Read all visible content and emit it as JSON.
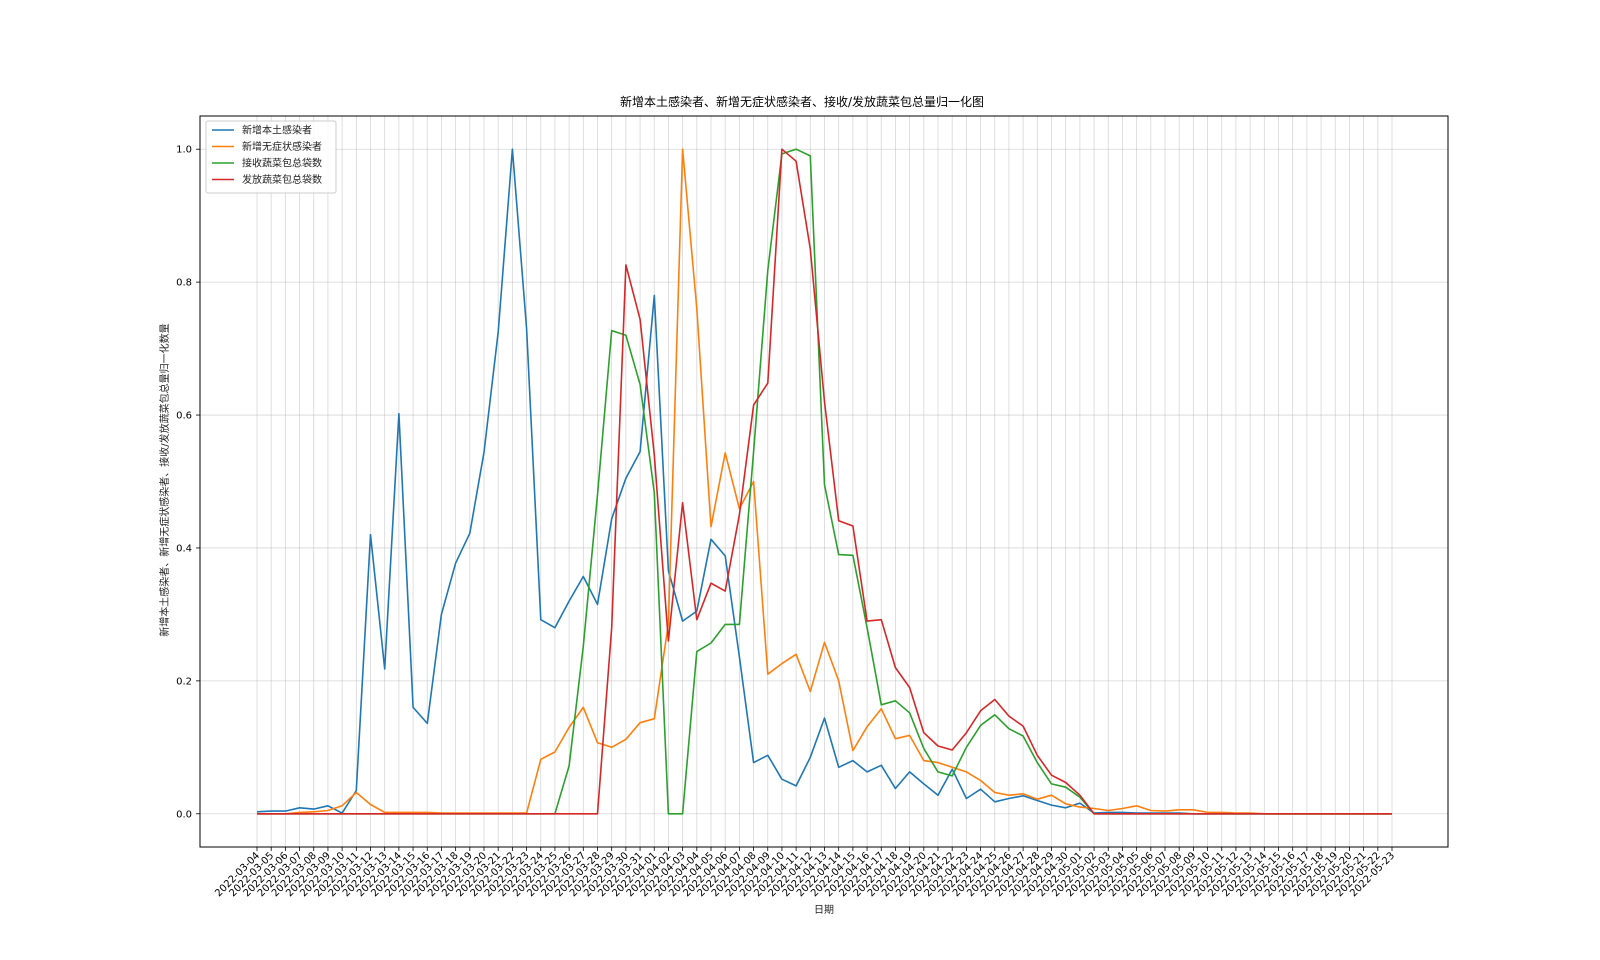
{
  "chart_data": {
    "type": "line",
    "title": "新增本土感染者、新增无症状感染者、接收/发放蔬菜包总量归一化图",
    "xlabel": "日期",
    "ylabel": "新增本土感染者、新增无症状感染者、接收/发放蔬菜包总量归一化数量",
    "ylim": [
      -0.05,
      1.05
    ],
    "yticks": [
      "0.0",
      "0.2",
      "0.4",
      "0.6",
      "0.8",
      "1.0"
    ],
    "grid": true,
    "legend_position": "top-left",
    "x": [
      "2022-03-04",
      "2022-03-05",
      "2022-03-06",
      "2022-03-07",
      "2022-03-08",
      "2022-03-09",
      "2022-03-10",
      "2022-03-11",
      "2022-03-12",
      "2022-03-13",
      "2022-03-14",
      "2022-03-15",
      "2022-03-16",
      "2022-03-17",
      "2022-03-18",
      "2022-03-19",
      "2022-03-20",
      "2022-03-21",
      "2022-03-22",
      "2022-03-23",
      "2022-03-24",
      "2022-03-25",
      "2022-03-26",
      "2022-03-27",
      "2022-03-28",
      "2022-03-29",
      "2022-03-30",
      "2022-03-31",
      "2022-04-01",
      "2022-04-02",
      "2022-04-03",
      "2022-04-04",
      "2022-04-05",
      "2022-04-06",
      "2022-04-07",
      "2022-04-08",
      "2022-04-09",
      "2022-04-10",
      "2022-04-11",
      "2022-04-12",
      "2022-04-13",
      "2022-04-14",
      "2022-04-15",
      "2022-04-16",
      "2022-04-17",
      "2022-04-18",
      "2022-04-19",
      "2022-04-20",
      "2022-04-21",
      "2022-04-22",
      "2022-04-23",
      "2022-04-24",
      "2022-04-25",
      "2022-04-26",
      "2022-04-27",
      "2022-04-28",
      "2022-04-29",
      "2022-04-30",
      "2022-05-01",
      "2022-05-02",
      "2022-05-03",
      "2022-05-04",
      "2022-05-05",
      "2022-05-06",
      "2022-05-07",
      "2022-05-08",
      "2022-05-09",
      "2022-05-10",
      "2022-05-11",
      "2022-05-12",
      "2022-05-13",
      "2022-05-14",
      "2022-05-15",
      "2022-05-16",
      "2022-05-17",
      "2022-05-18",
      "2022-05-19",
      "2022-05-20",
      "2022-05-21",
      "2022-05-22",
      "2022-05-23"
    ],
    "series": [
      {
        "name": "新增本土感染者",
        "color": "#1f77b4",
        "values": [
          0.003,
          0.004,
          0.004,
          0.009,
          0.007,
          0.012,
          0.001,
          0.035,
          0.42,
          0.218,
          0.602,
          0.16,
          0.136,
          0.3,
          0.377,
          0.422,
          0.544,
          0.725,
          1.0,
          0.73,
          0.292,
          0.28,
          0.32,
          0.357,
          0.315,
          0.444,
          0.505,
          0.545,
          0.78,
          0.366,
          0.29,
          0.305,
          0.413,
          0.388,
          0.236,
          0.077,
          0.088,
          0.052,
          0.042,
          0.085,
          0.144,
          0.07,
          0.08,
          0.063,
          0.073,
          0.038,
          0.063,
          0.045,
          0.028,
          0.067,
          0.023,
          0.037,
          0.018,
          0.023,
          0.027,
          0.02,
          0.013,
          0.009,
          0.016,
          0.001,
          0.002,
          0.002,
          0.001,
          0.001,
          0.001,
          0.001,
          0.0,
          0.0,
          0.0,
          0.0,
          0.0,
          0.0,
          0.0,
          0.0,
          0.0,
          0.0,
          0.0,
          0.0,
          0.0,
          0.0,
          0.0
        ]
      },
      {
        "name": "新增无症状感染者",
        "color": "#ff7f0e",
        "values": [
          0.0,
          0.0,
          0.0,
          0.002,
          0.003,
          0.005,
          0.012,
          0.032,
          0.014,
          0.002,
          0.002,
          0.002,
          0.002,
          0.001,
          0.001,
          0.001,
          0.001,
          0.001,
          0.001,
          0.001,
          0.082,
          0.093,
          0.13,
          0.16,
          0.107,
          0.1,
          0.112,
          0.137,
          0.143,
          0.286,
          1.0,
          0.76,
          0.432,
          0.543,
          0.459,
          0.5,
          0.21,
          0.226,
          0.24,
          0.184,
          0.258,
          0.2,
          0.095,
          0.131,
          0.158,
          0.113,
          0.118,
          0.08,
          0.077,
          0.07,
          0.063,
          0.05,
          0.032,
          0.028,
          0.03,
          0.022,
          0.028,
          0.015,
          0.01,
          0.008,
          0.005,
          0.008,
          0.012,
          0.005,
          0.004,
          0.006,
          0.006,
          0.002,
          0.002,
          0.001,
          0.001,
          0.0,
          0.0,
          0.0,
          0.0,
          0.0,
          0.0,
          0.0,
          0.0,
          0.0,
          0.0
        ]
      },
      {
        "name": "接收蔬菜包总袋数",
        "color": "#2ca02c",
        "values": [
          0.0,
          0.0,
          0.0,
          0.0,
          0.0,
          0.0,
          0.0,
          0.0,
          0.0,
          0.0,
          0.0,
          0.0,
          0.0,
          0.0,
          0.0,
          0.0,
          0.0,
          0.0,
          0.0,
          0.0,
          0.0,
          0.0,
          0.072,
          0.252,
          0.48,
          0.727,
          0.72,
          0.646,
          0.483,
          0.0,
          0.0,
          0.244,
          0.257,
          0.285,
          0.285,
          0.545,
          0.818,
          0.993,
          1.0,
          0.99,
          0.495,
          0.39,
          0.389,
          0.28,
          0.164,
          0.17,
          0.152,
          0.098,
          0.063,
          0.057,
          0.1,
          0.133,
          0.149,
          0.128,
          0.117,
          0.077,
          0.045,
          0.04,
          0.025,
          0.0,
          0.0,
          0.0,
          0.0,
          0.0,
          0.0,
          0.0,
          0.0,
          0.0,
          0.0,
          0.0,
          0.0,
          0.0,
          0.0,
          0.0,
          0.0,
          0.0,
          0.0,
          0.0,
          0.0,
          0.0,
          0.0
        ]
      },
      {
        "name": "发放蔬菜包总袋数",
        "color": "#d62728",
        "values": [
          0.0,
          0.0,
          0.0,
          0.0,
          0.0,
          0.0,
          0.0,
          0.0,
          0.0,
          0.0,
          0.0,
          0.0,
          0.0,
          0.0,
          0.0,
          0.0,
          0.0,
          0.0,
          0.0,
          0.0,
          0.0,
          0.0,
          0.0,
          0.0,
          0.0,
          0.28,
          0.826,
          0.744,
          0.54,
          0.26,
          0.468,
          0.292,
          0.347,
          0.335,
          0.45,
          0.615,
          0.648,
          1.0,
          0.982,
          0.85,
          0.62,
          0.441,
          0.433,
          0.29,
          0.292,
          0.22,
          0.19,
          0.122,
          0.102,
          0.096,
          0.122,
          0.155,
          0.172,
          0.147,
          0.132,
          0.088,
          0.058,
          0.047,
          0.028,
          0.0,
          0.0,
          0.0,
          0.0,
          0.0,
          0.0,
          0.0,
          0.0,
          0.0,
          0.0,
          0.0,
          0.0,
          0.0,
          0.0,
          0.0,
          0.0,
          0.0,
          0.0,
          0.0,
          0.0,
          0.0,
          0.0
        ]
      }
    ]
  }
}
